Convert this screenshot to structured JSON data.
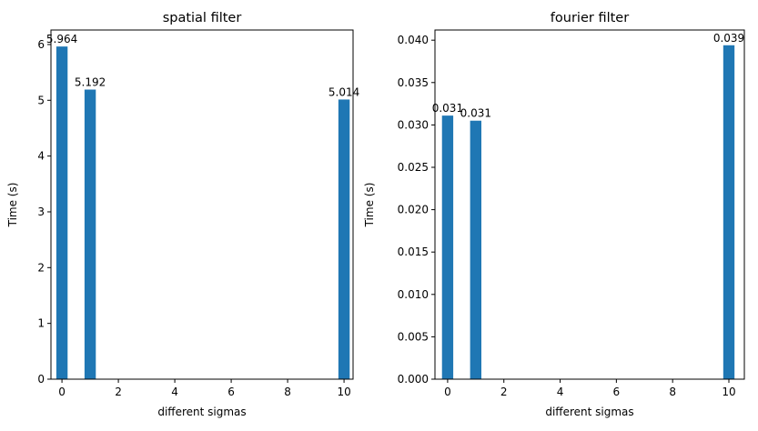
{
  "chart_data": [
    {
      "type": "bar",
      "title": "spatial filter",
      "x_label": "different sigmas",
      "y_label": "Time (s)",
      "x": [
        0,
        1,
        10
      ],
      "values": [
        5.964,
        5.192,
        5.014
      ],
      "color": "#1f77b4",
      "xlim": [
        -0.39,
        10.32
      ],
      "xticks": [
        0,
        2,
        4,
        6,
        8,
        10
      ],
      "ylim": [
        0,
        6.26
      ],
      "yticks": [
        0,
        1,
        2,
        3,
        4,
        5,
        6
      ],
      "grid": false
    },
    {
      "type": "bar",
      "title": "fourier filter",
      "x_label": "different sigmas",
      "y_label": "Time (s)",
      "x": [
        0,
        1,
        10
      ],
      "values": [
        0.0311,
        0.0305,
        0.0394
      ],
      "value_labels": [
        "0.031",
        "0.031",
        "0.039"
      ],
      "color": "#1f77b4",
      "xlim": [
        -0.45,
        10.55
      ],
      "xticks": [
        0,
        2,
        4,
        6,
        8,
        10
      ],
      "ylim": [
        0,
        0.0412
      ],
      "yticks": [
        {
          "value": 0,
          "label": "0.000"
        },
        {
          "value": 0.005,
          "label": "0.005"
        },
        {
          "value": 0.01,
          "label": "0.010"
        },
        {
          "value": 0.015,
          "label": "0.015"
        },
        {
          "value": 0.02,
          "label": "0.020"
        },
        {
          "value": 0.025,
          "label": "0.025"
        },
        {
          "value": 0.03,
          "label": "0.030"
        },
        {
          "value": 0.035,
          "label": "0.035"
        },
        {
          "value": 0.04,
          "label": "0.040"
        }
      ],
      "grid": false
    }
  ]
}
